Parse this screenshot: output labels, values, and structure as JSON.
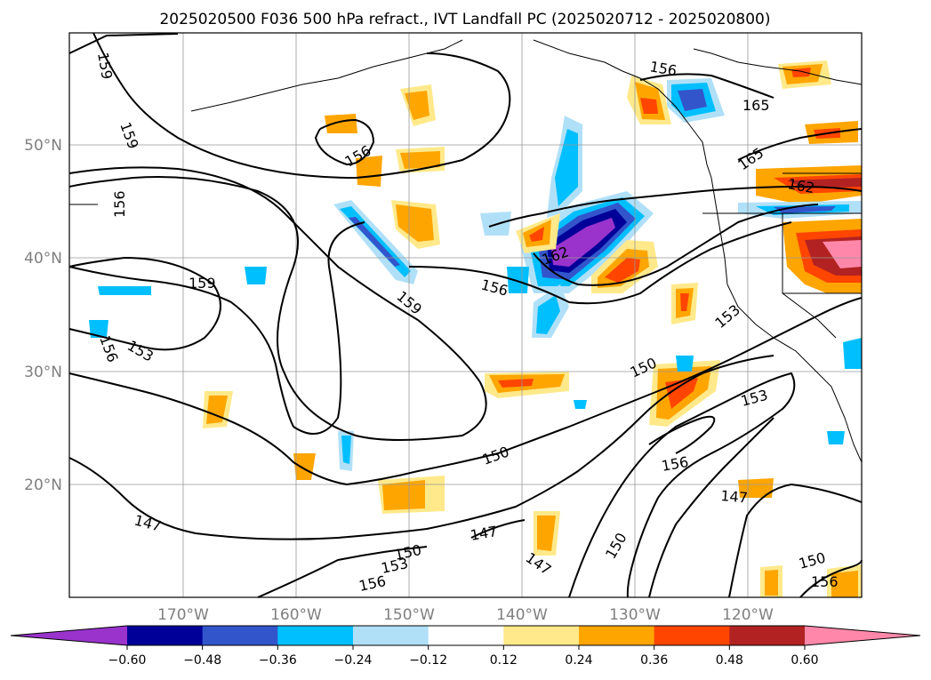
{
  "title": "2025020500 F036 500 hPa refract., IVT Landfall PC (2025020712 - 2025020800)",
  "lat_labels": [
    "50°N",
    "40°N",
    "30°N",
    "20°N"
  ],
  "lon_labels": [
    "170°W",
    "160°W",
    "150°W",
    "140°W",
    "130°W",
    "120°W"
  ],
  "contour_labels": [
    "159",
    "159",
    "156",
    "159",
    "156",
    "153",
    "156",
    "159",
    "156",
    "162",
    "165",
    "165",
    "162",
    "156",
    "153",
    "150",
    "153",
    "156",
    "150",
    "147",
    "147",
    "147",
    "150",
    "150",
    "153",
    "156",
    "147",
    "150",
    "156"
  ],
  "colorbar": {
    "ticks": [
      "−0.60",
      "−0.48",
      "−0.36",
      "−0.24",
      "−0.12",
      "0.12",
      "0.24",
      "0.36",
      "0.48",
      "0.60"
    ],
    "colors": [
      "#9933cc",
      "#000099",
      "#3355cc",
      "#00bfff",
      "#b0e0f8",
      "#ffffff",
      "#ffe98a",
      "#ffa500",
      "#ff4500",
      "#b22222",
      "#ff88aa"
    ]
  }
}
